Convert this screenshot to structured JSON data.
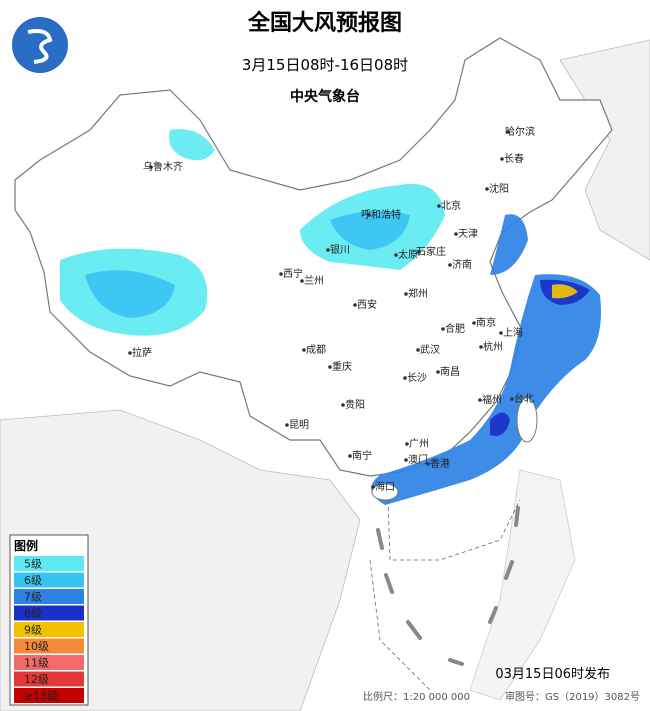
{
  "header": {
    "title": "全国大风预报图",
    "period": "3月15日08时-16日08时",
    "agency": "中央气象台"
  },
  "cities": [
    "乌鲁木齐",
    "哈尔滨",
    "长春",
    "沈阳",
    "北京",
    "呼和浩特",
    "天津",
    "石家庄",
    "银川",
    "太原",
    "济南",
    "西宁",
    "兰州",
    "郑州",
    "西安",
    "南京",
    "合肥",
    "上海",
    "成都",
    "武汉",
    "杭州",
    "拉萨",
    "重庆",
    "长沙",
    "南昌",
    "贵阳",
    "福州",
    "台北",
    "昆明",
    "广州",
    "南宁",
    "香港",
    "澳门",
    "海口"
  ],
  "legend": {
    "title": "图例",
    "items": [
      {
        "label": "5级",
        "color": "#5eeaf2"
      },
      {
        "label": "6级",
        "color": "#38c4f2"
      },
      {
        "label": "7级",
        "color": "#2d82e6"
      },
      {
        "label": "8级",
        "color": "#1b30c8"
      },
      {
        "label": "9级",
        "color": "#f2c200"
      },
      {
        "label": "10级",
        "color": "#f58a3a"
      },
      {
        "label": "11级",
        "color": "#f36a6a"
      },
      {
        "label": "12级",
        "color": "#e23838"
      },
      {
        "label": "≥13级",
        "color": "#c20000"
      }
    ]
  },
  "footer": {
    "issued": "03月15日06时发布",
    "scale": "比例尺：1:20 000 000",
    "approval": "审图号：GS（2019）3082号"
  }
}
